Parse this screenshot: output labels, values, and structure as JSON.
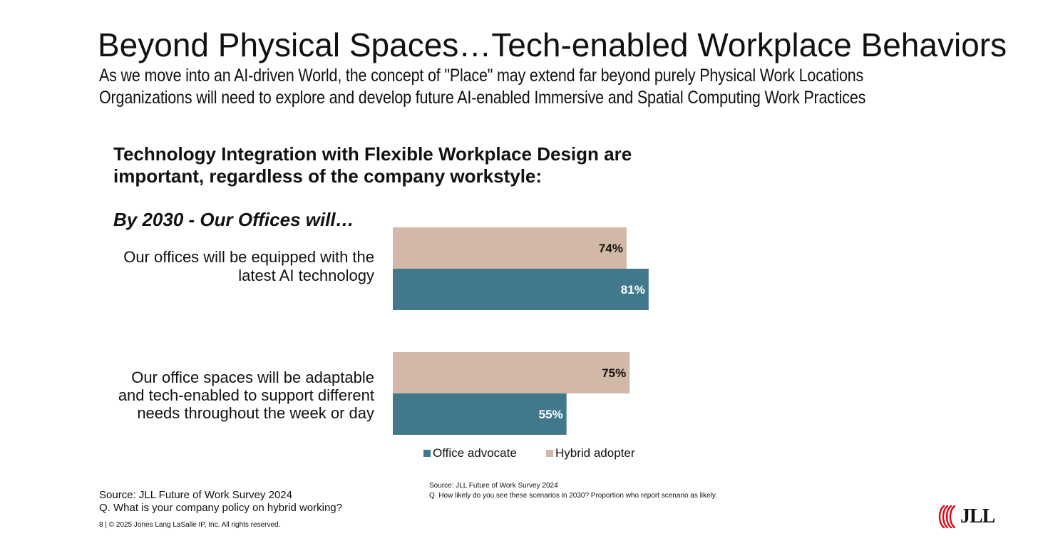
{
  "slide": {
    "title": "Beyond Physical Spaces…Tech-enabled Workplace Behaviors",
    "subtitle_lines": [
      "As we move into an AI-driven World, the concept of \"Place\" may extend far beyond purely Physical Work Locations",
      "Organizations will need to explore and develop future AI-enabled Immersive and Spatial Computing Work Practices"
    ],
    "headline_lines": [
      "Technology Integration with Flexible Workplace Design are",
      "important, regardless of the company workstyle:"
    ],
    "source_left": [
      "Source: JLL Future of Work Survey 2024",
      "Q. What is your company policy on hybrid working?"
    ],
    "copyright": "8 | © 2025 Jones Lang LaSalle IP, Inc. All rights reserved.",
    "logo_text": "JLL",
    "logo_icon": "jll-logo-icon"
  },
  "chart_data": {
    "type": "bar",
    "orientation": "horizontal",
    "subtitle": "By 2030 - Our Offices will…",
    "categories": [
      "Our offices will be equipped with the latest AI technology",
      "Our office spaces will be adaptable and tech-enabled to support different needs throughout the week or day"
    ],
    "category_lines": [
      [
        "Our offices will be equipped with the",
        "latest AI technology"
      ],
      [
        "Our office spaces will be adaptable",
        "and tech-enabled to support different",
        "needs throughout the week or day"
      ]
    ],
    "series": [
      {
        "name": "Hybrid adopter",
        "values": [
          74,
          75
        ],
        "labels": [
          "74%",
          "75%"
        ],
        "color": "#d2b9a7",
        "label_color": "#111111"
      },
      {
        "name": "Office advocate",
        "values": [
          81,
          55
        ],
        "labels": [
          "81%",
          "55%"
        ],
        "color": "#41788b",
        "label_color": "#ffffff"
      }
    ],
    "legend_order": [
      "Office advocate",
      "Hybrid adopter"
    ],
    "legend_position": "bottom",
    "xlim": [
      0,
      100
    ],
    "unit": "%",
    "grid": false,
    "source_lines": [
      "Source: JLL Future of Work Survey 2024",
      "Q. How likely do you see these scenarios in 2030? Proportion who report scenario as likely."
    ]
  }
}
